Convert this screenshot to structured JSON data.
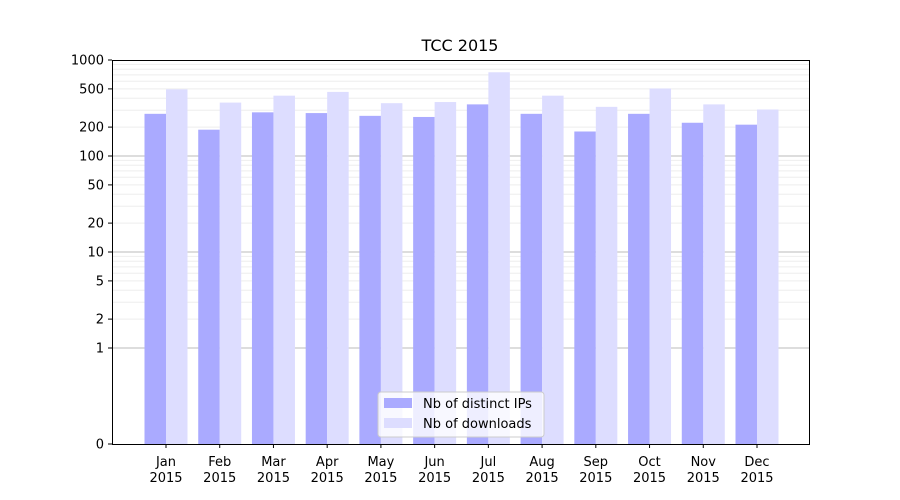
{
  "chart_data": {
    "type": "bar",
    "title": "TCC 2015",
    "xlabel": "",
    "ylabel": "",
    "yscale": "symlog",
    "ylim": [
      0,
      1000
    ],
    "yticks": [
      0,
      1,
      2,
      5,
      10,
      20,
      50,
      100,
      200,
      500,
      1000
    ],
    "ytick_labels": [
      "0",
      "1",
      "2",
      "5",
      "10",
      "20",
      "50",
      "100",
      "200",
      "500",
      "1000"
    ],
    "categories": [
      [
        "Jan",
        "2015"
      ],
      [
        "Feb",
        "2015"
      ],
      [
        "Mar",
        "2015"
      ],
      [
        "Apr",
        "2015"
      ],
      [
        "May",
        "2015"
      ],
      [
        "Jun",
        "2015"
      ],
      [
        "Jul",
        "2015"
      ],
      [
        "Aug",
        "2015"
      ],
      [
        "Sep",
        "2015"
      ],
      [
        "Oct",
        "2015"
      ],
      [
        "Nov",
        "2015"
      ],
      [
        "Dec",
        "2015"
      ]
    ],
    "series": [
      {
        "name": "Nb of distinct IPs",
        "color": "#aaaaff",
        "values": [
          275,
          188,
          285,
          280,
          262,
          255,
          345,
          275,
          180,
          275,
          222,
          212
        ]
      },
      {
        "name": "Nb of downloads",
        "color": "#ddddff",
        "values": [
          495,
          360,
          425,
          465,
          355,
          365,
          745,
          425,
          325,
          505,
          345,
          305
        ]
      }
    ],
    "grid": true,
    "legend_position": "bottom-center"
  }
}
